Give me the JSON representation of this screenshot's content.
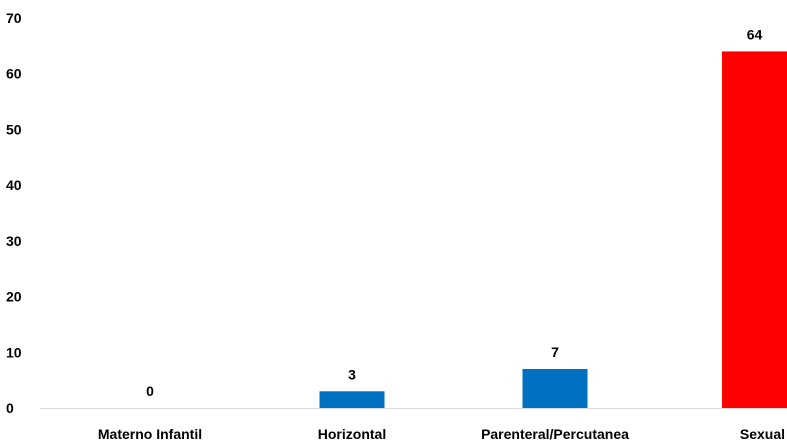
{
  "chart_data": {
    "type": "bar",
    "title": "",
    "xlabel": "",
    "ylabel": "",
    "categories": [
      "Materno Infantil",
      "Horizontal",
      "Parenteral/Percutanea",
      "Sexual"
    ],
    "values": [
      0,
      3,
      7,
      64
    ],
    "data_labels": [
      "0",
      "3",
      "7",
      "64"
    ],
    "bar_colors": [
      "#0070C0",
      "#0070C0",
      "#0070C0",
      "#FF0000"
    ],
    "ylim": [
      0,
      70
    ],
    "yticks": [
      0,
      10,
      20,
      30,
      40,
      50,
      60,
      70
    ],
    "grid": false,
    "legend": "none"
  }
}
